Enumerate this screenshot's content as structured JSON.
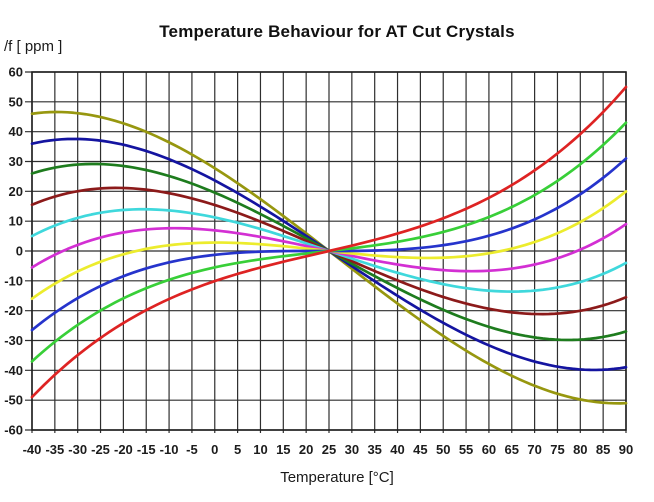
{
  "chart_data": {
    "type": "line",
    "title": "Temperature Behaviour for AT Cut Crystals",
    "ylabel": "/f [ ppm ]",
    "xlabel": "Temperature [°C]",
    "xlim": [
      -40,
      90
    ],
    "ylim": [
      -60,
      60
    ],
    "x_tick_step_c": 5,
    "y_tick_step_ppm": 10,
    "grid": true,
    "legend": "none",
    "x_tick_labels": [
      "-40",
      "-35",
      "-30",
      "-25",
      "-20",
      "-15",
      "-10",
      "-5",
      "0",
      "5",
      "10",
      "15",
      "20",
      "25",
      "30",
      "35",
      "40",
      "45",
      "50",
      "55",
      "60",
      "65",
      "70",
      "75",
      "80",
      "85",
      "90"
    ],
    "y_tick_labels": [
      "60",
      "50",
      "40",
      "30",
      "20",
      "10",
      "0",
      "-10",
      "-20",
      "-30",
      "-40",
      "-50",
      "-60"
    ],
    "crossover_point": {
      "temperature_c": 25,
      "ppm": 0
    },
    "model": "ppm(T) = a3*(T-25)^3 + a2*(T-25)^2 + a1*(T-25); all curves pass through (25 C, 0 ppm)",
    "series": [
      {
        "id": "curve-1",
        "color_name": "olive",
        "color": "#97970F",
        "a3": 0.000105,
        "a2": -0.000592,
        "a1": -1.19,
        "ppm_at_minus40c": 46,
        "ppm_at_90c": -51
      },
      {
        "id": "curve-2",
        "color_name": "navy",
        "color": "#1414A0",
        "a3": 0.000105,
        "a2": -0.000355,
        "a1": -1.02,
        "ppm_at_minus40c": 36,
        "ppm_at_90c": -39
      },
      {
        "id": "curve-3",
        "color_name": "dark-green",
        "color": "#1E7C1E",
        "a3": 0.000105,
        "a2": -0.000118,
        "a1": -0.851,
        "ppm_at_minus40c": 26,
        "ppm_at_90c": -27
      },
      {
        "id": "curve-4",
        "color_name": "dark-red",
        "color": "#8C1A1A",
        "a3": 0.000105,
        "a2": 0.0,
        "a1": -0.682,
        "ppm_at_minus40c": 15.5,
        "ppm_at_90c": -15.5
      },
      {
        "id": "curve-5",
        "color_name": "cyan",
        "color": "#3FD8DC",
        "a3": 0.000105,
        "a2": 0.000118,
        "a1": -0.513,
        "ppm_at_minus40c": 5,
        "ppm_at_90c": -4
      },
      {
        "id": "curve-6",
        "color_name": "magenta",
        "color": "#D32FD3",
        "a3": 0.000105,
        "a2": 0.000414,
        "a1": -0.332,
        "ppm_at_minus40c": -5.5,
        "ppm_at_90c": 9
      },
      {
        "id": "curve-7",
        "color_name": "yellow",
        "color": "#ECEC2D",
        "a3": 0.000105,
        "a2": 0.000473,
        "a1": -0.167,
        "ppm_at_minus40c": -16,
        "ppm_at_90c": 20
      },
      {
        "id": "curve-8",
        "color_name": "blue",
        "color": "#2634CC",
        "a3": 0.000105,
        "a2": 0.000533,
        "a1": -0.001,
        "ppm_at_minus40c": -26.5,
        "ppm_at_90c": 31
      },
      {
        "id": "curve-9",
        "color_name": "green",
        "color": "#38CF38",
        "a3": 0.000105,
        "a2": 0.00071,
        "a1": 0.172,
        "ppm_at_minus40c": -37,
        "ppm_at_90c": 43
      },
      {
        "id": "curve-10",
        "color_name": "red",
        "color": "#DE2323",
        "a3": 0.000105,
        "a2": 0.00071,
        "a1": 0.356,
        "ppm_at_minus40c": -49,
        "ppm_at_90c": 55
      }
    ],
    "grid_color": "#2e2e2e",
    "frame_color": "#1f1f1f",
    "background_color": "#ffffff"
  }
}
